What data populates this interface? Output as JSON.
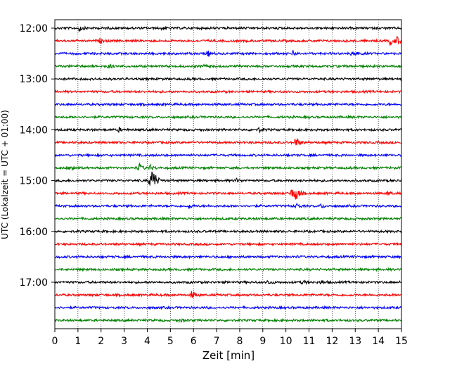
{
  "chart_data": {
    "type": "line",
    "title": "",
    "xlabel": "Zeit  [min]",
    "ylabel": "UTC (Lokalzeit = UTC + 01:00)",
    "xlim": [
      0,
      15
    ],
    "x_ticks": [
      0,
      1,
      2,
      3,
      4,
      5,
      6,
      7,
      8,
      9,
      10,
      11,
      12,
      13,
      14,
      15
    ],
    "x_tick_labels": [
      "0",
      "1",
      "2",
      "3",
      "4",
      "5",
      "6",
      "7",
      "8",
      "9",
      "10",
      "11",
      "12",
      "13",
      "14",
      "15"
    ],
    "grid": "vertical dotted",
    "trace_interval_min": 15,
    "y_tick_labels": [
      "12:00",
      "13:00",
      "14:00",
      "15:00",
      "16:00",
      "17:00"
    ],
    "y_tick_rows": [
      0,
      4,
      8,
      12,
      16,
      20
    ],
    "color_cycle": [
      "#000000",
      "#ff0000",
      "#0000ff",
      "#008000"
    ],
    "traces": [
      {
        "start": "12:00",
        "color": "#000000",
        "events": [
          {
            "t": 1.05,
            "amp": 0.35
          },
          {
            "t": 4.6,
            "amp": 0.15
          }
        ]
      },
      {
        "start": "12:15",
        "color": "#ff0000",
        "events": [
          {
            "t": 1.95,
            "amp": 0.2
          },
          {
            "t": 14.5,
            "amp": 0.45
          },
          {
            "t": 14.75,
            "amp": 0.6
          }
        ]
      },
      {
        "start": "12:30",
        "color": "#0000ff",
        "events": [
          {
            "t": 6.6,
            "amp": 0.35
          },
          {
            "t": 10.3,
            "amp": 0.25
          },
          {
            "t": 12.85,
            "amp": 0.65
          }
        ]
      },
      {
        "start": "12:45",
        "color": "#008000",
        "events": [
          {
            "t": 2.3,
            "amp": 0.25
          },
          {
            "t": 6.4,
            "amp": 0.15
          }
        ]
      },
      {
        "start": "13:00",
        "color": "#000000",
        "events": []
      },
      {
        "start": "13:15",
        "color": "#ff0000",
        "events": []
      },
      {
        "start": "13:30",
        "color": "#0000ff",
        "events": []
      },
      {
        "start": "13:45",
        "color": "#008000",
        "events": []
      },
      {
        "start": "14:00",
        "color": "#000000",
        "events": [
          {
            "t": 2.75,
            "amp": 0.2
          },
          {
            "t": 8.8,
            "amp": 0.25
          }
        ]
      },
      {
        "start": "14:15",
        "color": "#ff0000",
        "events": [
          {
            "t": 10.4,
            "amp": 0.75
          }
        ]
      },
      {
        "start": "14:30",
        "color": "#0000ff",
        "events": []
      },
      {
        "start": "14:45",
        "color": "#008000",
        "events": [
          {
            "t": 0.7,
            "amp": 0.45
          },
          {
            "t": 3.6,
            "amp": 0.6
          },
          {
            "t": 4.1,
            "amp": 0.3
          }
        ]
      },
      {
        "start": "15:00",
        "color": "#000000",
        "events": [
          {
            "t": 4.1,
            "amp": 1.0
          },
          {
            "t": 4.22,
            "amp": 1.4
          },
          {
            "t": 7.8,
            "amp": 0.25
          }
        ]
      },
      {
        "start": "15:15",
        "color": "#ff0000",
        "events": [
          {
            "t": 10.2,
            "amp": 0.7
          },
          {
            "t": 10.4,
            "amp": 0.9
          },
          {
            "t": 14.4,
            "amp": 0.2
          }
        ]
      },
      {
        "start": "15:30",
        "color": "#0000ff",
        "events": [
          {
            "t": 5.8,
            "amp": 0.25
          },
          {
            "t": 10.4,
            "amp": 0.4
          },
          {
            "t": 11.5,
            "amp": 0.2
          }
        ]
      },
      {
        "start": "15:45",
        "color": "#008000",
        "events": []
      },
      {
        "start": "16:00",
        "color": "#000000",
        "events": []
      },
      {
        "start": "16:15",
        "color": "#ff0000",
        "events": []
      },
      {
        "start": "16:30",
        "color": "#0000ff",
        "events": []
      },
      {
        "start": "16:45",
        "color": "#008000",
        "events": []
      },
      {
        "start": "17:00",
        "color": "#000000",
        "events": [
          {
            "t": 9.2,
            "amp": 0.2
          },
          {
            "t": 10.7,
            "amp": 0.25
          },
          {
            "t": 11.5,
            "amp": 0.2
          }
        ]
      },
      {
        "start": "17:15",
        "color": "#ff0000",
        "events": [
          {
            "t": 5.9,
            "amp": 0.45
          }
        ]
      },
      {
        "start": "17:30",
        "color": "#0000ff",
        "events": []
      },
      {
        "start": "17:45",
        "color": "#008000",
        "events": [
          {
            "t": 5.4,
            "amp": 0.15
          }
        ]
      }
    ]
  }
}
